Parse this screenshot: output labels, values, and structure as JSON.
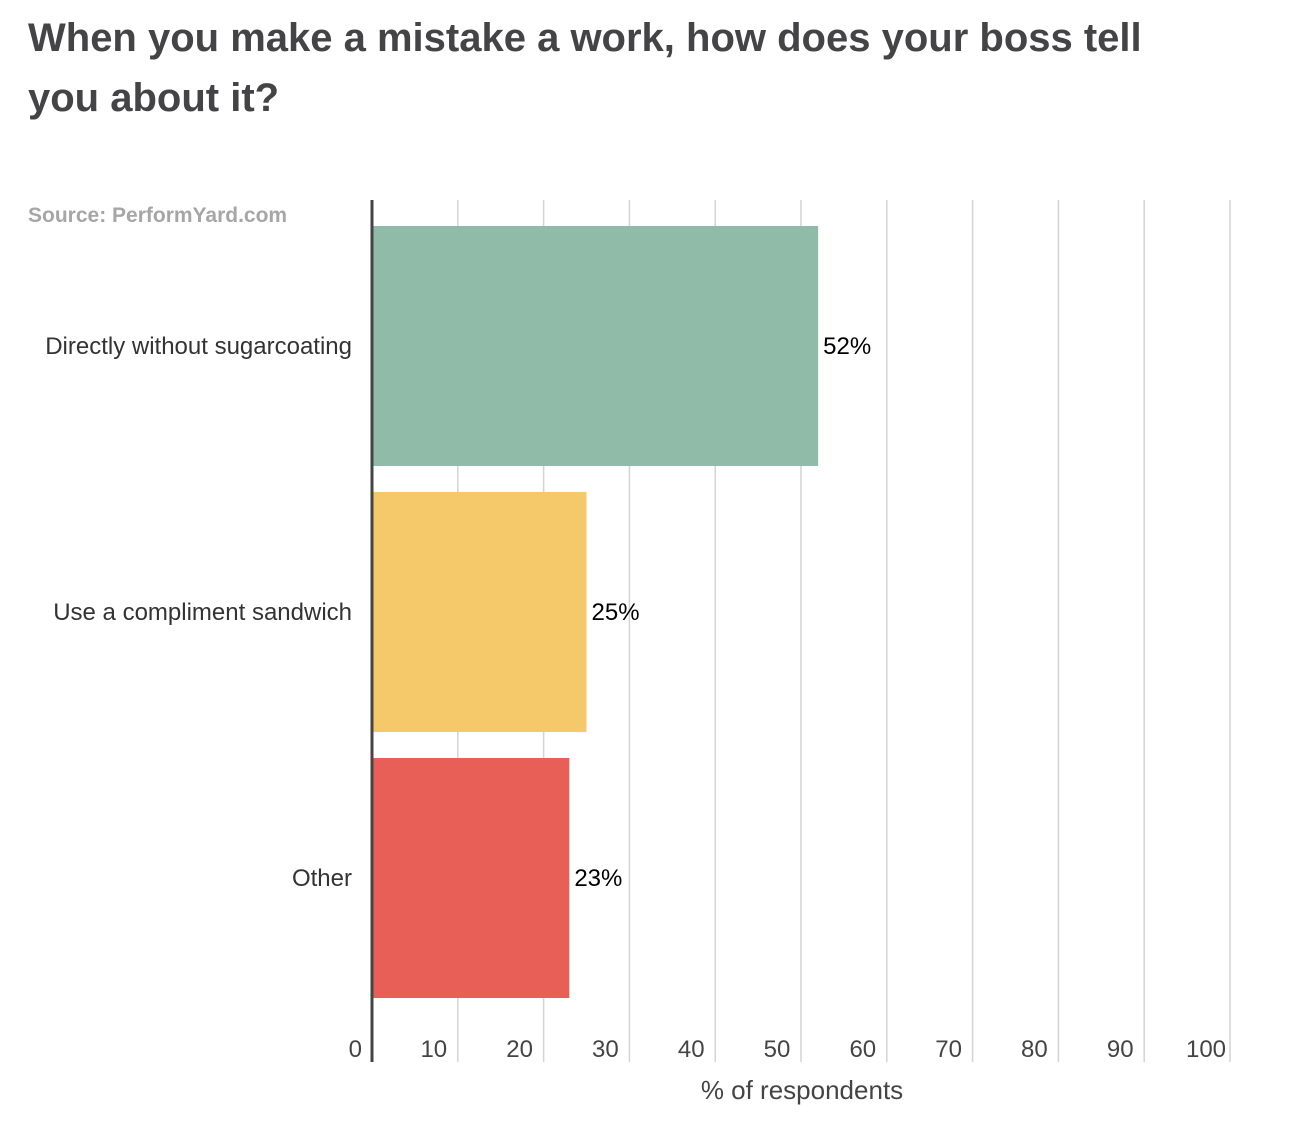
{
  "chart_data": {
    "type": "bar",
    "orientation": "horizontal",
    "title": "When you make a mistake a work, how does your boss tell you about it?",
    "source": "Source: PerformYard.com",
    "categories": [
      "Directly without sugarcoating",
      "Use a compliment sandwich",
      "Other"
    ],
    "values": [
      52,
      25,
      23
    ],
    "value_labels": [
      "52%",
      "25%",
      "23%"
    ],
    "colors": [
      "#8fbba8",
      "#f5c869",
      "#e85f57"
    ],
    "xlabel": "% of respondents",
    "ylabel": "",
    "xlim": [
      0,
      100
    ],
    "xticks": [
      0,
      10,
      20,
      30,
      40,
      50,
      60,
      70,
      80,
      90,
      100
    ],
    "grid": true
  }
}
